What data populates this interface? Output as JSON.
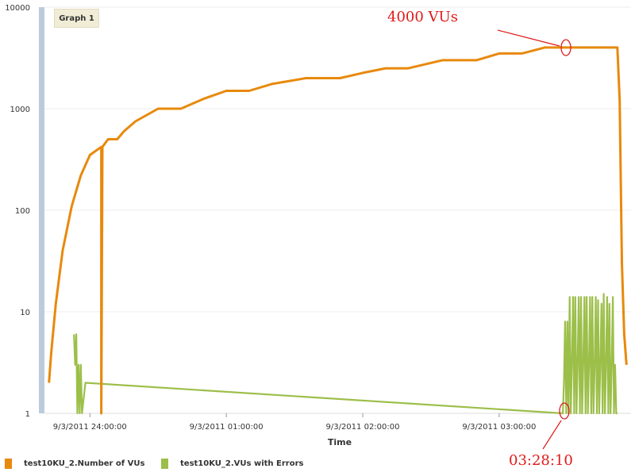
{
  "graph_label": "Graph 1",
  "colors": {
    "vus": "#e8890c",
    "errors": "#9cbf4a",
    "annotation": "#e01a1a",
    "scroll_bar": "#bccbdc"
  },
  "legend": [
    {
      "name": "test10KU_2.Number of VUs",
      "color": "#e8890c"
    },
    {
      "name": "test10KU_2.VUs with Errors",
      "color": "#9cbf4a"
    }
  ],
  "annotations": {
    "top_note": "4000 VUs",
    "bottom_note": "03:28:10"
  },
  "chart_data": {
    "type": "line",
    "xlabel": "Time",
    "ylabel": "",
    "yscale": "log",
    "ylim": [
      1,
      10000
    ],
    "xlim": [
      "9/3/2011 23:40:00",
      "9/3/2011 03:58:00"
    ],
    "y_ticks": [
      "1",
      "10",
      "100",
      "1000",
      "10000"
    ],
    "x_ticks": [
      "9/3/2011 24:00:00",
      "9/3/2011 01:00:00",
      "9/3/2011 02:00:00",
      "9/3/2011 03:00:00"
    ],
    "grid": true,
    "legend_position": "bottom-left",
    "series": [
      {
        "x": [
          "23:42:00",
          "23:43:00",
          "23:45:00",
          "23:48:00",
          "23:52:00",
          "23:56:00",
          "24:00:00",
          "24:05:00",
          "24:05:00",
          "24:05:30",
          "24:08:00",
          "24:12:00",
          "24:15:00",
          "24:20:00",
          "24:30:00",
          "24:40:00",
          "24:50:00",
          "01:00:00",
          "01:10:00",
          "01:20:00",
          "01:35:00",
          "01:50:00",
          "02:00:00",
          "02:10:00",
          "02:20:00",
          "02:35:00",
          "02:50:00",
          "03:00:00",
          "03:10:00",
          "03:20:00",
          "03:28:10",
          "03:40:00",
          "03:52:00",
          "03:53:00",
          "03:54:00",
          "03:55:00",
          "03:56:00"
        ],
        "values": [
          2,
          4,
          12,
          40,
          110,
          220,
          350,
          420,
          1,
          420,
          500,
          500,
          600,
          750,
          1000,
          1000,
          1250,
          1500,
          1500,
          1750,
          2000,
          2000,
          2250,
          2500,
          2500,
          3000,
          3000,
          3500,
          3500,
          4000,
          4000,
          4000,
          4000,
          1200,
          30,
          6,
          3
        ]
      },
      {
        "x": [
          "23:53:00",
          "23:53:30",
          "23:54:00",
          "23:54:30",
          "23:55:00",
          "23:55:30",
          "23:56:00",
          "23:56:30",
          "23:58:00",
          "03:28:00",
          "03:28:30",
          "03:29:00",
          "03:29:30",
          "03:30:00",
          "03:30:30",
          "03:31:00",
          "03:31:30",
          "03:32:00",
          "03:32:30",
          "03:33:00",
          "03:33:30",
          "03:34:00",
          "03:34:30",
          "03:35:00",
          "03:35:30",
          "03:36:00",
          "03:36:30",
          "03:37:00",
          "03:37:30",
          "03:38:00",
          "03:38:30",
          "03:39:00",
          "03:39:30",
          "03:40:00",
          "03:40:30",
          "03:41:00",
          "03:41:30",
          "03:42:00",
          "03:42:30",
          "03:43:00",
          "03:43:30",
          "03:44:00",
          "03:44:30",
          "03:45:00",
          "03:45:30",
          "03:46:00",
          "03:46:30",
          "03:47:00",
          "03:47:30",
          "03:48:00",
          "03:48:30",
          "03:49:00",
          "03:49:30",
          "03:50:00",
          "03:50:30",
          "03:51:00",
          "03:51:30",
          "03:52:00"
        ],
        "values": [
          6,
          3,
          6,
          1,
          3,
          1,
          3,
          1,
          2,
          1,
          2,
          8,
          1,
          8,
          1,
          14,
          1,
          3,
          14,
          1,
          14,
          1,
          3,
          14,
          1,
          14,
          1,
          3,
          14,
          1,
          14,
          1,
          3,
          14,
          1,
          14,
          1,
          3,
          14,
          1,
          13,
          1,
          3,
          12,
          1,
          15,
          1,
          3,
          14,
          1,
          12,
          1,
          3,
          14,
          1,
          3,
          1,
          1
        ]
      }
    ]
  }
}
